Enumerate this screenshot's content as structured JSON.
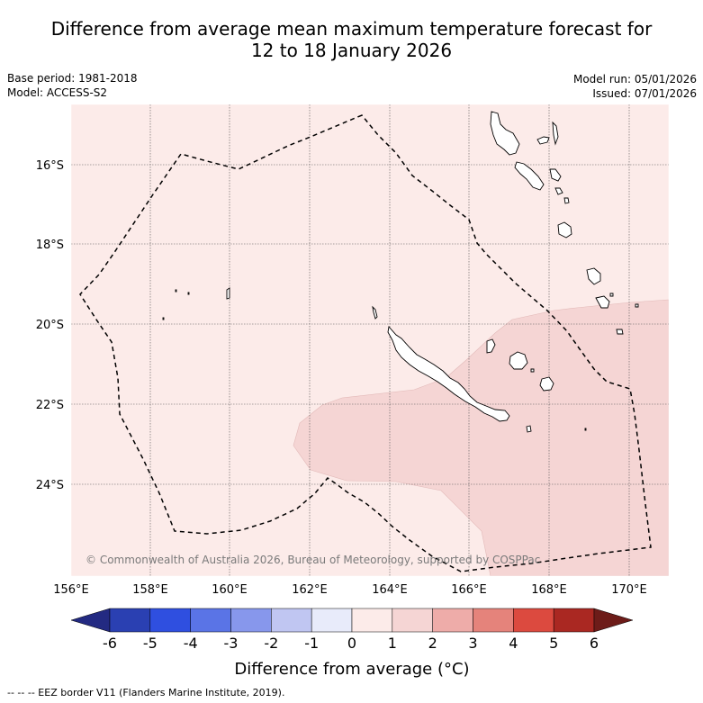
{
  "title": {
    "line1": "Difference from average mean maximum temperature forecast for",
    "line2": "12 to 18 January 2026"
  },
  "meta": {
    "base_period": "Base period: 1981-2018",
    "model": "Model: ACCESS-S2",
    "model_run": "Model run: 05/01/2026",
    "issued": "Issued: 07/01/2026"
  },
  "map": {
    "lon_labels": [
      "156°E",
      "158°E",
      "160°E",
      "162°E",
      "164°E",
      "166°E",
      "168°E",
      "170°E"
    ],
    "lat_labels": [
      "16°S",
      "18°S",
      "20°S",
      "22°S",
      "24°S"
    ],
    "copyright": "© Commonwealth of Australia 2026, Bureau of Meteorology, supported by COSPPac",
    "background_category": "0 to 1",
    "anomaly_region_category": "1 to 2"
  },
  "colorbar": {
    "ticks": [
      "-6",
      "-5",
      "-4",
      "-3",
      "-2",
      "-1",
      "0",
      "1",
      "2",
      "3",
      "4",
      "5",
      "6"
    ],
    "colors": [
      "#232a82",
      "#2a40b2",
      "#2f4fe0",
      "#5a74e6",
      "#8797ec",
      "#c0c6f2",
      "#e8ebfa",
      "#fcebe9",
      "#f5d5d4",
      "#eeaca9",
      "#e5837b",
      "#dc4a3f",
      "#aa2822",
      "#6d1c19"
    ],
    "label": "Difference from average (°C)"
  },
  "footnote": "--  --  -- EEZ border V11 (Flanders Marine Institute, 2019)."
}
